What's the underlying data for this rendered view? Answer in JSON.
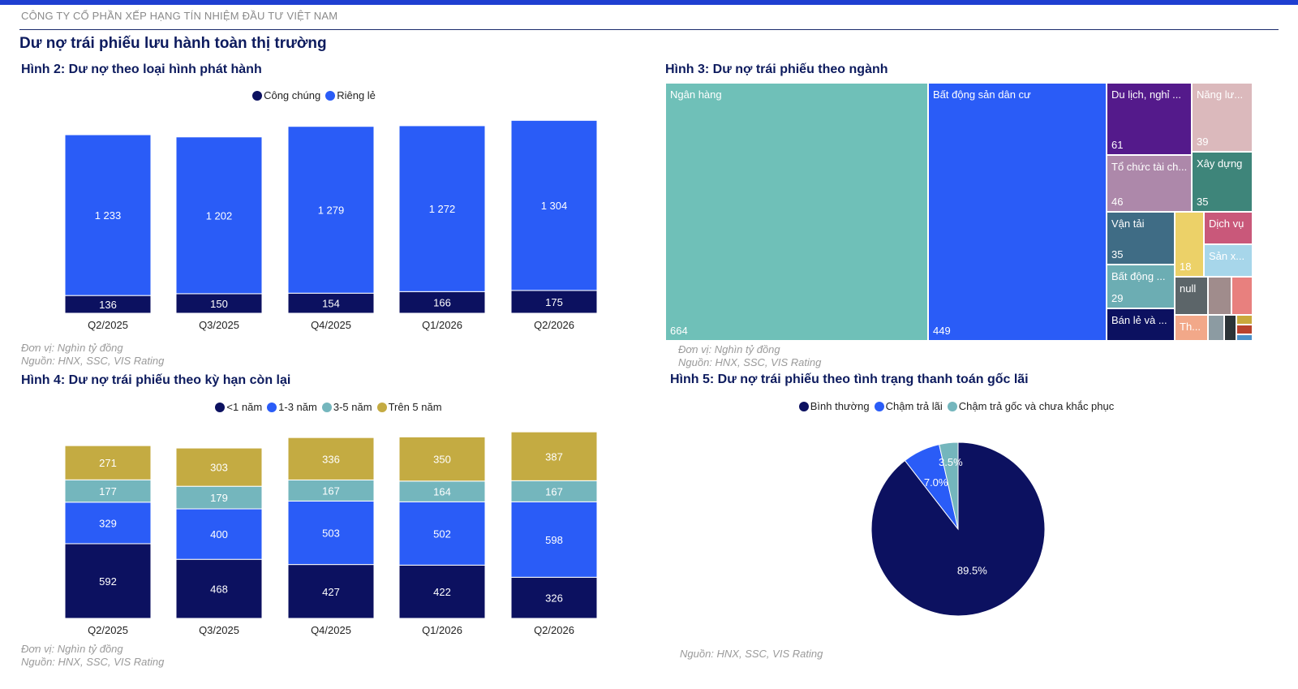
{
  "header": {
    "company": "CÔNG TY CỔ PHẦN XẾP HẠNG TÍN NHIỆM ĐẦU TƯ VIỆT NAM",
    "page_title": "Dư nợ trái phiếu lưu hành toàn thị trường"
  },
  "fig2": {
    "title": "Hình 2: Dư nợ theo loại hình phát hành",
    "unit": "Đơn vị: Nghìn tỷ đồng",
    "source": "Nguồn: HNX, SSC, VIS Rating"
  },
  "fig3": {
    "title": "Hình 3: Dư nợ trái phiếu theo ngành",
    "unit": "Đơn vị: Nghìn tỷ đồng",
    "source": "Nguồn: HNX, SSC, VIS Rating"
  },
  "fig4": {
    "title": "Hình 4: Dư nợ trái phiếu theo kỳ hạn còn lại",
    "unit": "Đơn vị: Nghìn tỷ đồng",
    "source": "Nguồn: HNX, SSC, VIS Rating"
  },
  "fig5": {
    "title": "Hình 5: Dư nợ trái phiếu theo tình trạng thanh toán gốc lãi",
    "source": "Nguồn: HNX, SSC, VIS Rating"
  },
  "chart_data": [
    {
      "id": "fig2",
      "type": "bar",
      "stacked": true,
      "categories": [
        "Q2/2025",
        "Q3/2025",
        "Q4/2025",
        "Q1/2026",
        "Q2/2026"
      ],
      "series": [
        {
          "name": "Công chúng",
          "color": "#0c1160",
          "values": [
            136,
            150,
            154,
            166,
            175
          ]
        },
        {
          "name": "Riêng lẻ",
          "color": "#2a5cf7",
          "values": [
            1233,
            1202,
            1279,
            1272,
            1304
          ]
        }
      ],
      "legend": "top-center",
      "grid": false
    },
    {
      "id": "fig3",
      "type": "treemap",
      "items": [
        {
          "name": "Ngân hàng",
          "value": 664,
          "color": "#6fc0b8"
        },
        {
          "name": "Bất động sản dân cư",
          "value": 449,
          "color": "#2a5cf7"
        },
        {
          "name": "Du lịch, nghỉ ...",
          "value": 61,
          "color": "#541a8b"
        },
        {
          "name": "Tổ chức tài ch...",
          "value": 46,
          "color": "#ad88aa"
        },
        {
          "name": "Năng lư...",
          "value": 39,
          "color": "#dbb9bc"
        },
        {
          "name": "Xây dựng",
          "value": 35,
          "color": "#3e857a"
        },
        {
          "name": "Vận tải",
          "value": 35,
          "color": "#3f6c85"
        },
        {
          "name": "Bất động ...",
          "value": 29,
          "color": "#6cadb3"
        },
        {
          "name": "Bán lẻ và ...",
          "value": "",
          "color": "#0c1160"
        },
        {
          "name": "",
          "value": 18,
          "color": "#ecd168"
        },
        {
          "name": "Dịch vụ",
          "value": "",
          "color": "#c9587a"
        },
        {
          "name": "Sản x...",
          "value": "",
          "color": "#a7d6ea"
        },
        {
          "name": "null",
          "value": "",
          "color": "#5c6569"
        },
        {
          "name": "Th...",
          "value": "",
          "color": "#f2a889"
        },
        {
          "name": "",
          "value": "",
          "color": "#a08c8c"
        },
        {
          "name": "",
          "value": "",
          "color": "#e8807e"
        },
        {
          "name": "",
          "value": "",
          "color": "#8c9ba2"
        },
        {
          "name": "",
          "value": "",
          "color": "#2c3437"
        },
        {
          "name": "",
          "value": "",
          "color": "#c9a93c"
        },
        {
          "name": "",
          "value": "",
          "color": "#b9432d"
        },
        {
          "name": "",
          "value": "",
          "color": "#4a90c8"
        }
      ]
    },
    {
      "id": "fig4",
      "type": "bar",
      "stacked": true,
      "categories": [
        "Q2/2025",
        "Q3/2025",
        "Q4/2025",
        "Q1/2026",
        "Q2/2026"
      ],
      "series": [
        {
          "name": "<1 năm",
          "color": "#0c1160",
          "values": [
            592,
            468,
            427,
            422,
            326
          ]
        },
        {
          "name": "1-3 năm",
          "color": "#2a5cf7",
          "values": [
            329,
            400,
            503,
            502,
            598
          ]
        },
        {
          "name": "3-5 năm",
          "color": "#74b6bd",
          "values": [
            177,
            179,
            167,
            164,
            167
          ]
        },
        {
          "name": "Trên 5 năm",
          "color": "#c4ab42",
          "values": [
            271,
            303,
            336,
            350,
            387
          ]
        }
      ],
      "legend": "top-center",
      "grid": false
    },
    {
      "id": "fig5",
      "type": "pie",
      "slices": [
        {
          "name": "Bình thường",
          "value": 89.5,
          "label": "89.5%",
          "color": "#0c1160"
        },
        {
          "name": "Chậm trả lãi",
          "value": 7.0,
          "label": "7.0%",
          "color": "#2a5cf7"
        },
        {
          "name": "Chậm trả gốc và chưa khắc phục",
          "value": 3.5,
          "label": "3.5%",
          "color": "#74b6bd"
        }
      ],
      "legend": "top-center"
    }
  ]
}
